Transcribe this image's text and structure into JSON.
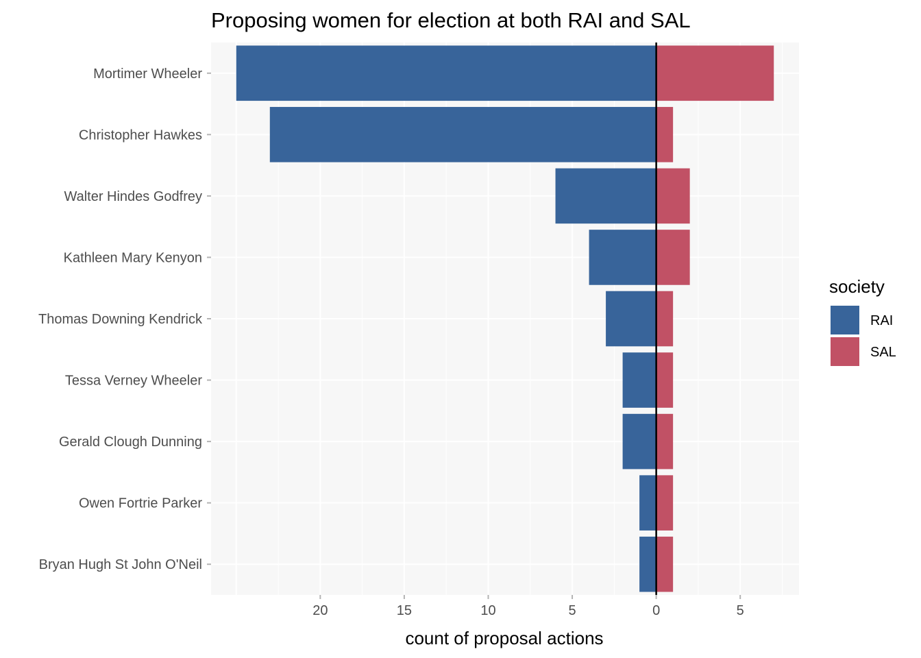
{
  "chart_data": {
    "type": "bar",
    "orientation": "horizontal-diverging",
    "title": "Proposing women for election at both RAI and SAL",
    "xlabel": "count of proposal actions",
    "ylabel": "",
    "categories": [
      "Mortimer Wheeler",
      "Christopher Hawkes",
      "Walter Hindes Godfrey",
      "Kathleen Mary Kenyon",
      "Thomas Downing Kendrick",
      "Tessa Verney Wheeler",
      "Gerald Clough Dunning",
      "Owen Fortrie Parker",
      "Bryan Hugh St John O'Neil"
    ],
    "series": [
      {
        "name": "RAI",
        "color": "#38649a",
        "values": [
          -25,
          -23,
          -6,
          -4,
          -3,
          -2,
          -2,
          -1,
          -1
        ]
      },
      {
        "name": "SAL",
        "color": "#c15165",
        "values": [
          7,
          1,
          2,
          2,
          1,
          1,
          1,
          1,
          1
        ]
      }
    ],
    "xlim": [
      -26.5,
      8.5
    ],
    "xticks": [
      -20,
      -15,
      -10,
      -5,
      0,
      5
    ],
    "xtick_labels": [
      "20",
      "15",
      "10",
      "5",
      "0",
      "5"
    ],
    "legend": {
      "title": "society",
      "position": "right"
    },
    "grid": true,
    "zero_line": true,
    "panel_background": "#f7f7f7"
  }
}
